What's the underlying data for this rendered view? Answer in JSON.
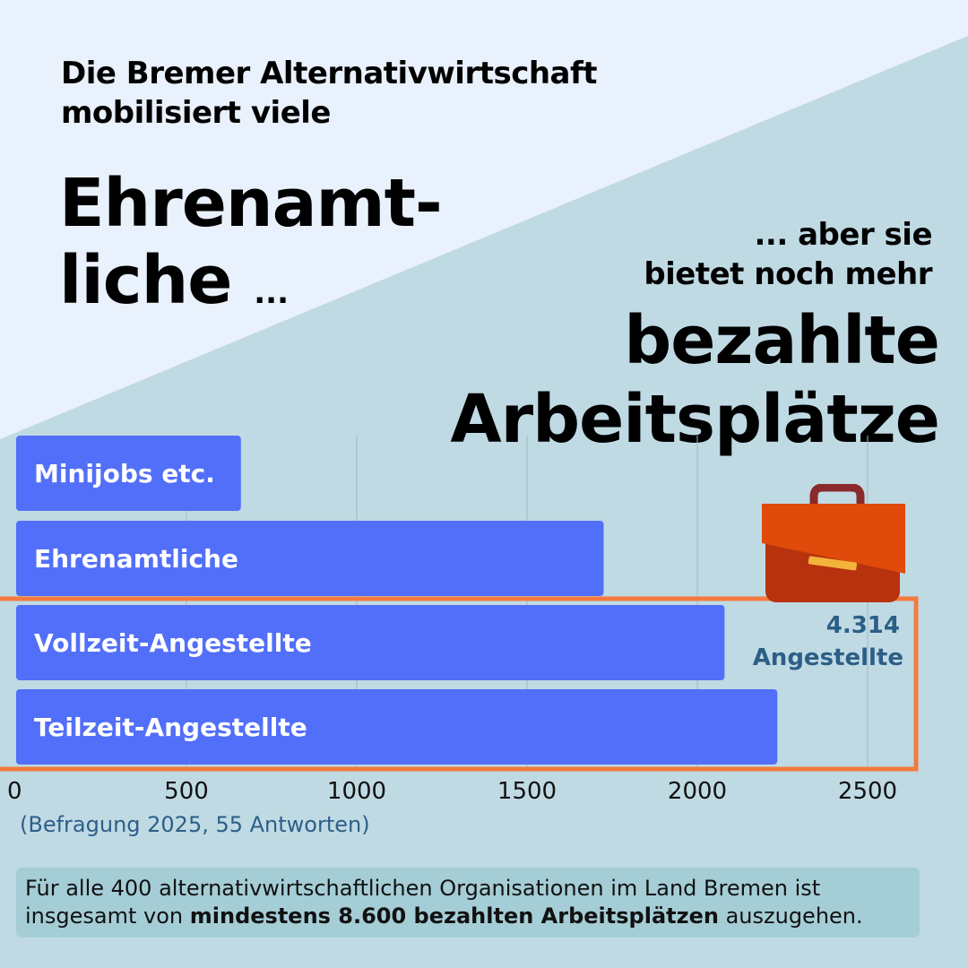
{
  "headline": {
    "line1": "Die Bremer Alternativwirtschaft",
    "line2": "mobilisiert viele",
    "big1": "Ehrenamt-",
    "big2": "liche",
    "big2_dots": "...",
    "right1": "... aber sie",
    "right2": "bietet noch mehr",
    "right_big1": "bezahlte",
    "right_big2": "Arbeitsplätze"
  },
  "colors": {
    "bar": "#526ff9",
    "highlight_box": "#f47a3e",
    "background_light": "#e9f1fc",
    "background_dark": "#c0dae4",
    "annotation": "#2c5f87",
    "briefcase": "#e04a0a"
  },
  "icon": "briefcase-icon",
  "chart_data": {
    "type": "bar",
    "orientation": "horizontal",
    "categories": [
      "Minijobs etc.",
      "Ehrenamtliche",
      "Vollzeit-Angestellte",
      "Teilzeit-Angestellte"
    ],
    "values": [
      660,
      1725,
      2080,
      2235
    ],
    "xlim": [
      0,
      2600
    ],
    "xticks": [
      "0",
      "500",
      "1000",
      "1500",
      "2000",
      "2500"
    ],
    "xtick_values": [
      0,
      500,
      1000,
      1500,
      2000,
      2500
    ],
    "grid": true,
    "annotation": {
      "value": "4.314",
      "label": "Angestellte",
      "highlighted_categories": [
        "Vollzeit-Angestellte",
        "Teilzeit-Angestellte"
      ]
    }
  },
  "source": "(Befragung 2025, 55 Antworten)",
  "footer": {
    "text1": "Für alle 400 alternativwirtschaftlichen Organisationen im Land Bremen ist insgesamt von ",
    "bold": "mindestens 8.600 bezahlten Arbeitsplätzen",
    "text2": " auszugehen."
  }
}
